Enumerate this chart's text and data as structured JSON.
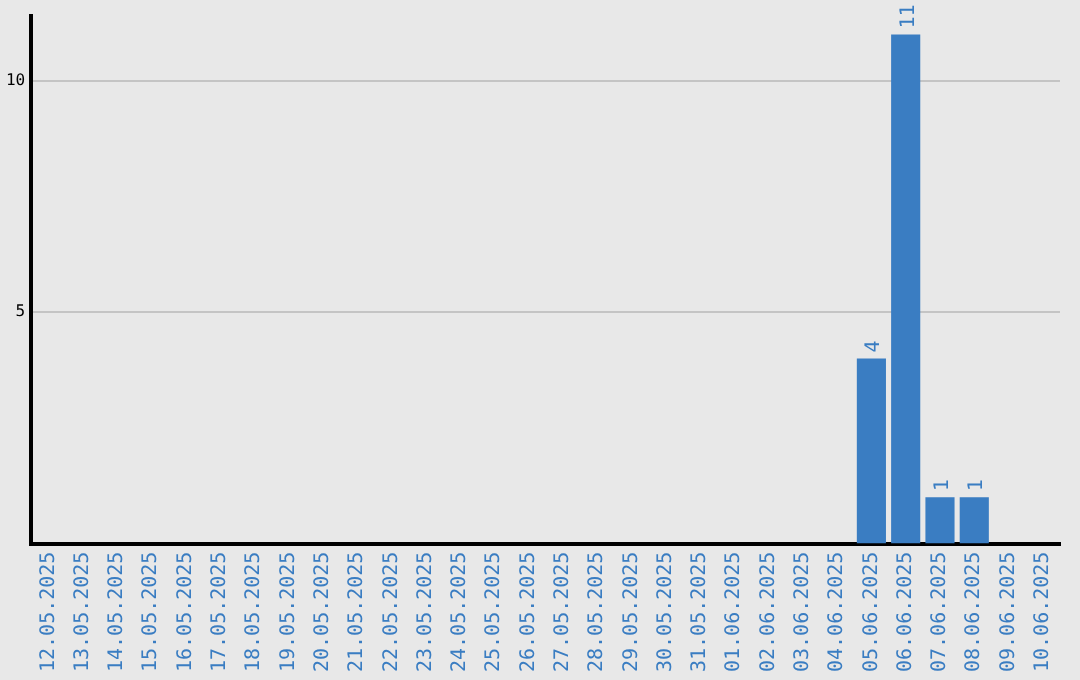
{
  "chart_data": {
    "type": "bar",
    "categories": [
      "12.05.2025",
      "13.05.2025",
      "14.05.2025",
      "15.05.2025",
      "16.05.2025",
      "17.05.2025",
      "18.05.2025",
      "19.05.2025",
      "20.05.2025",
      "21.05.2025",
      "22.05.2025",
      "23.05.2025",
      "24.05.2025",
      "25.05.2025",
      "26.05.2025",
      "27.05.2025",
      "28.05.2025",
      "29.05.2025",
      "30.05.2025",
      "31.05.2025",
      "01.06.2025",
      "02.06.2025",
      "03.06.2025",
      "04.06.2025",
      "05.06.2025",
      "06.06.2025",
      "07.06.2025",
      "08.06.2025",
      "09.06.2025",
      "10.06.2025"
    ],
    "values": [
      0,
      0,
      0,
      0,
      0,
      0,
      0,
      0,
      0,
      0,
      0,
      0,
      0,
      0,
      0,
      0,
      0,
      0,
      0,
      0,
      0,
      0,
      0,
      0,
      4,
      11,
      1,
      1,
      0,
      0
    ],
    "value_labels": [
      null,
      null,
      null,
      null,
      null,
      null,
      null,
      null,
      null,
      null,
      null,
      null,
      null,
      null,
      null,
      null,
      null,
      null,
      null,
      null,
      null,
      null,
      null,
      null,
      "4",
      "11",
      "1",
      "1",
      null,
      null
    ],
    "color": "#3a7dc2",
    "ylim": [
      0,
      11.4
    ],
    "yticks": [
      5,
      10
    ],
    "grid": "y",
    "legend": false
  }
}
